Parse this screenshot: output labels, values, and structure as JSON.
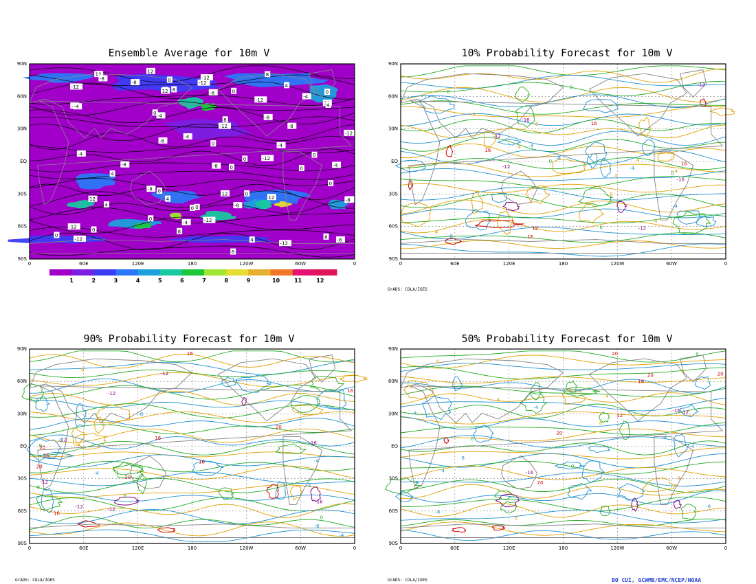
{
  "panels": [
    {
      "id": "ens",
      "title": "Ensemble Average for 10m V",
      "type": "filled"
    },
    {
      "id": "p10",
      "title": "10% Probability Forecast for 10m V",
      "type": "lines"
    },
    {
      "id": "p90",
      "title": "90% Probability Forecast for 10m V",
      "type": "lines"
    },
    {
      "id": "p50",
      "title": "50% Probability Forecast for 10m V",
      "type": "lines"
    }
  ],
  "lat_labels": [
    "90N",
    "60N",
    "30N",
    "EQ",
    "30S",
    "60S",
    "90S"
  ],
  "lon_labels": [
    "0",
    "60E",
    "120E",
    "180",
    "120W",
    "60W",
    "0"
  ],
  "colorbar": {
    "labels": [
      "1",
      "2",
      "3",
      "4",
      "5",
      "6",
      "7",
      "8",
      "9",
      "10",
      "11",
      "12"
    ],
    "colors": [
      "#a000c8",
      "#7a1fe0",
      "#3c3cf5",
      "#2a78f5",
      "#1ea0dc",
      "#18c8a0",
      "#1ec83c",
      "#a0e632",
      "#e6dc32",
      "#e6af2d",
      "#f07828",
      "#e6146e",
      "#e0145a"
    ]
  },
  "contour_labels_ensemble": [
    "0",
    "4",
    "-4",
    "8",
    "-8",
    "12",
    "-12"
  ],
  "contour_labels_prob": [
    "-16",
    "-12",
    "-8",
    "-4",
    "0",
    "4",
    "8",
    "12",
    "16",
    "20"
  ],
  "credit": "GrADS: COLA/IGES",
  "footer": "BO CUI, GCWMB/EMC/NCEP/NOAA",
  "colors": {
    "land_outline": "#808080",
    "neg_strong": "#800080",
    "neg": "#1e90d0",
    "near_zero": "#22aa22",
    "pos": "#e0a000",
    "pos_strong": "#cc0000",
    "footer": "#1f3fd0"
  }
}
